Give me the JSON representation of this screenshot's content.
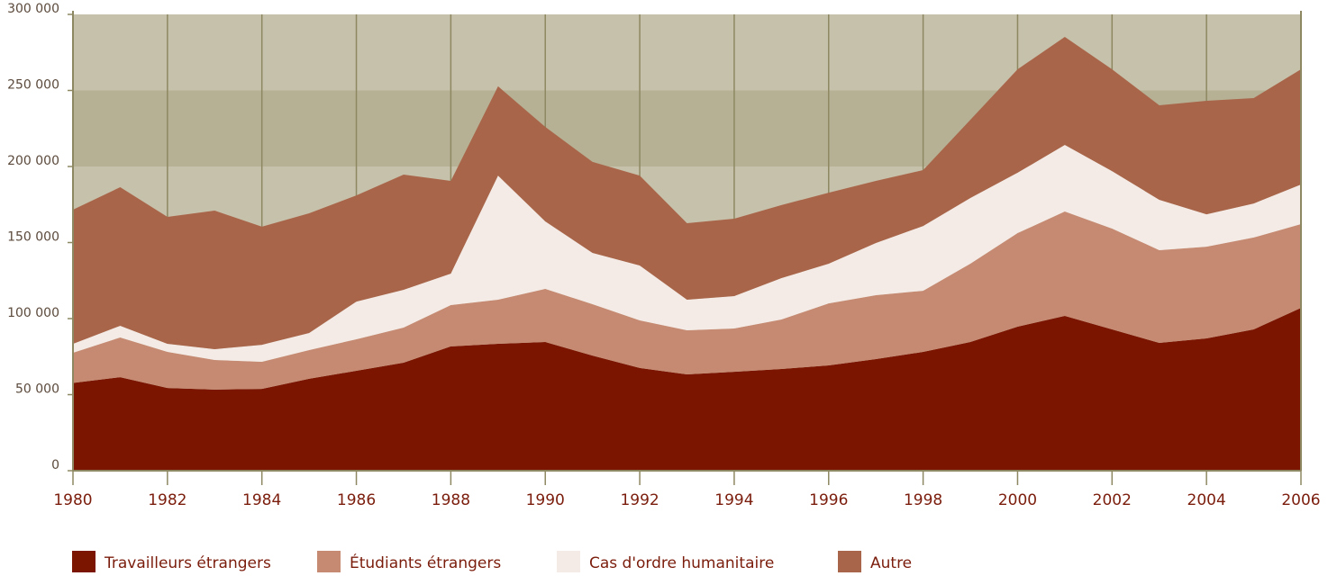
{
  "chart_data": {
    "type": "stacked_area",
    "x": [
      1980,
      1981,
      1982,
      1983,
      1984,
      1985,
      1986,
      1987,
      1988,
      1989,
      1990,
      1991,
      1992,
      1993,
      1994,
      1995,
      1996,
      1997,
      1998,
      1999,
      2000,
      2001,
      2002,
      2003,
      2004,
      2005,
      2006
    ],
    "series": [
      {
        "name": "Travailleurs étrangers",
        "color": "#7b1500",
        "values": [
          57700,
          61500,
          54400,
          53300,
          53800,
          60400,
          65700,
          71000,
          81700,
          83400,
          84600,
          75700,
          67500,
          63300,
          65000,
          66900,
          69200,
          73400,
          78100,
          84600,
          94700,
          101800,
          92900,
          84000,
          87000,
          92900,
          107000
        ]
      },
      {
        "name": "Étudiants étrangers",
        "color": "#c68a72",
        "values": [
          19800,
          26100,
          23700,
          19500,
          17800,
          18900,
          20700,
          23100,
          27200,
          29000,
          34900,
          33800,
          31300,
          29000,
          28500,
          32500,
          40800,
          42000,
          40200,
          51500,
          61500,
          68600,
          66300,
          61000,
          60300,
          60400,
          55100
        ]
      },
      {
        "name": "Cas d'ordre humanitaire",
        "color": "#f5ebe6",
        "values": [
          5900,
          7700,
          5300,
          7100,
          11200,
          11200,
          24800,
          24800,
          20700,
          81600,
          44400,
          33700,
          36100,
          20100,
          21300,
          27200,
          26100,
          34300,
          42600,
          43200,
          39700,
          43800,
          37800,
          33100,
          21300,
          22400,
          26100
        ]
      },
      {
        "name": "Autre",
        "color": "#a9654a",
        "values": [
          88200,
          91100,
          83500,
          91100,
          77600,
          78700,
          69800,
          75800,
          60900,
          58700,
          62100,
          59800,
          59100,
          50300,
          50900,
          48000,
          46700,
          40800,
          36700,
          51400,
          68000,
          71000,
          66900,
          62100,
          74600,
          69300,
          75700
        ]
      }
    ],
    "xlim": [
      1980,
      2006
    ],
    "xticks": [
      1980,
      1982,
      1984,
      1986,
      1988,
      1990,
      1992,
      1994,
      1996,
      1998,
      2000,
      2002,
      2004,
      2006
    ],
    "ylim": [
      0,
      300000
    ],
    "yticks": [
      0,
      {
        "value": 50000,
        "label": "50 000"
      },
      {
        "value": 100000,
        "label": "100 000"
      },
      {
        "value": 150000,
        "label": "150 000"
      },
      {
        "value": 200000,
        "label": "200 000"
      },
      {
        "value": 250000,
        "label": "250 000"
      },
      {
        "value": 300000,
        "label": "300 000"
      }
    ],
    "grid": true,
    "legend": "bottom"
  }
}
